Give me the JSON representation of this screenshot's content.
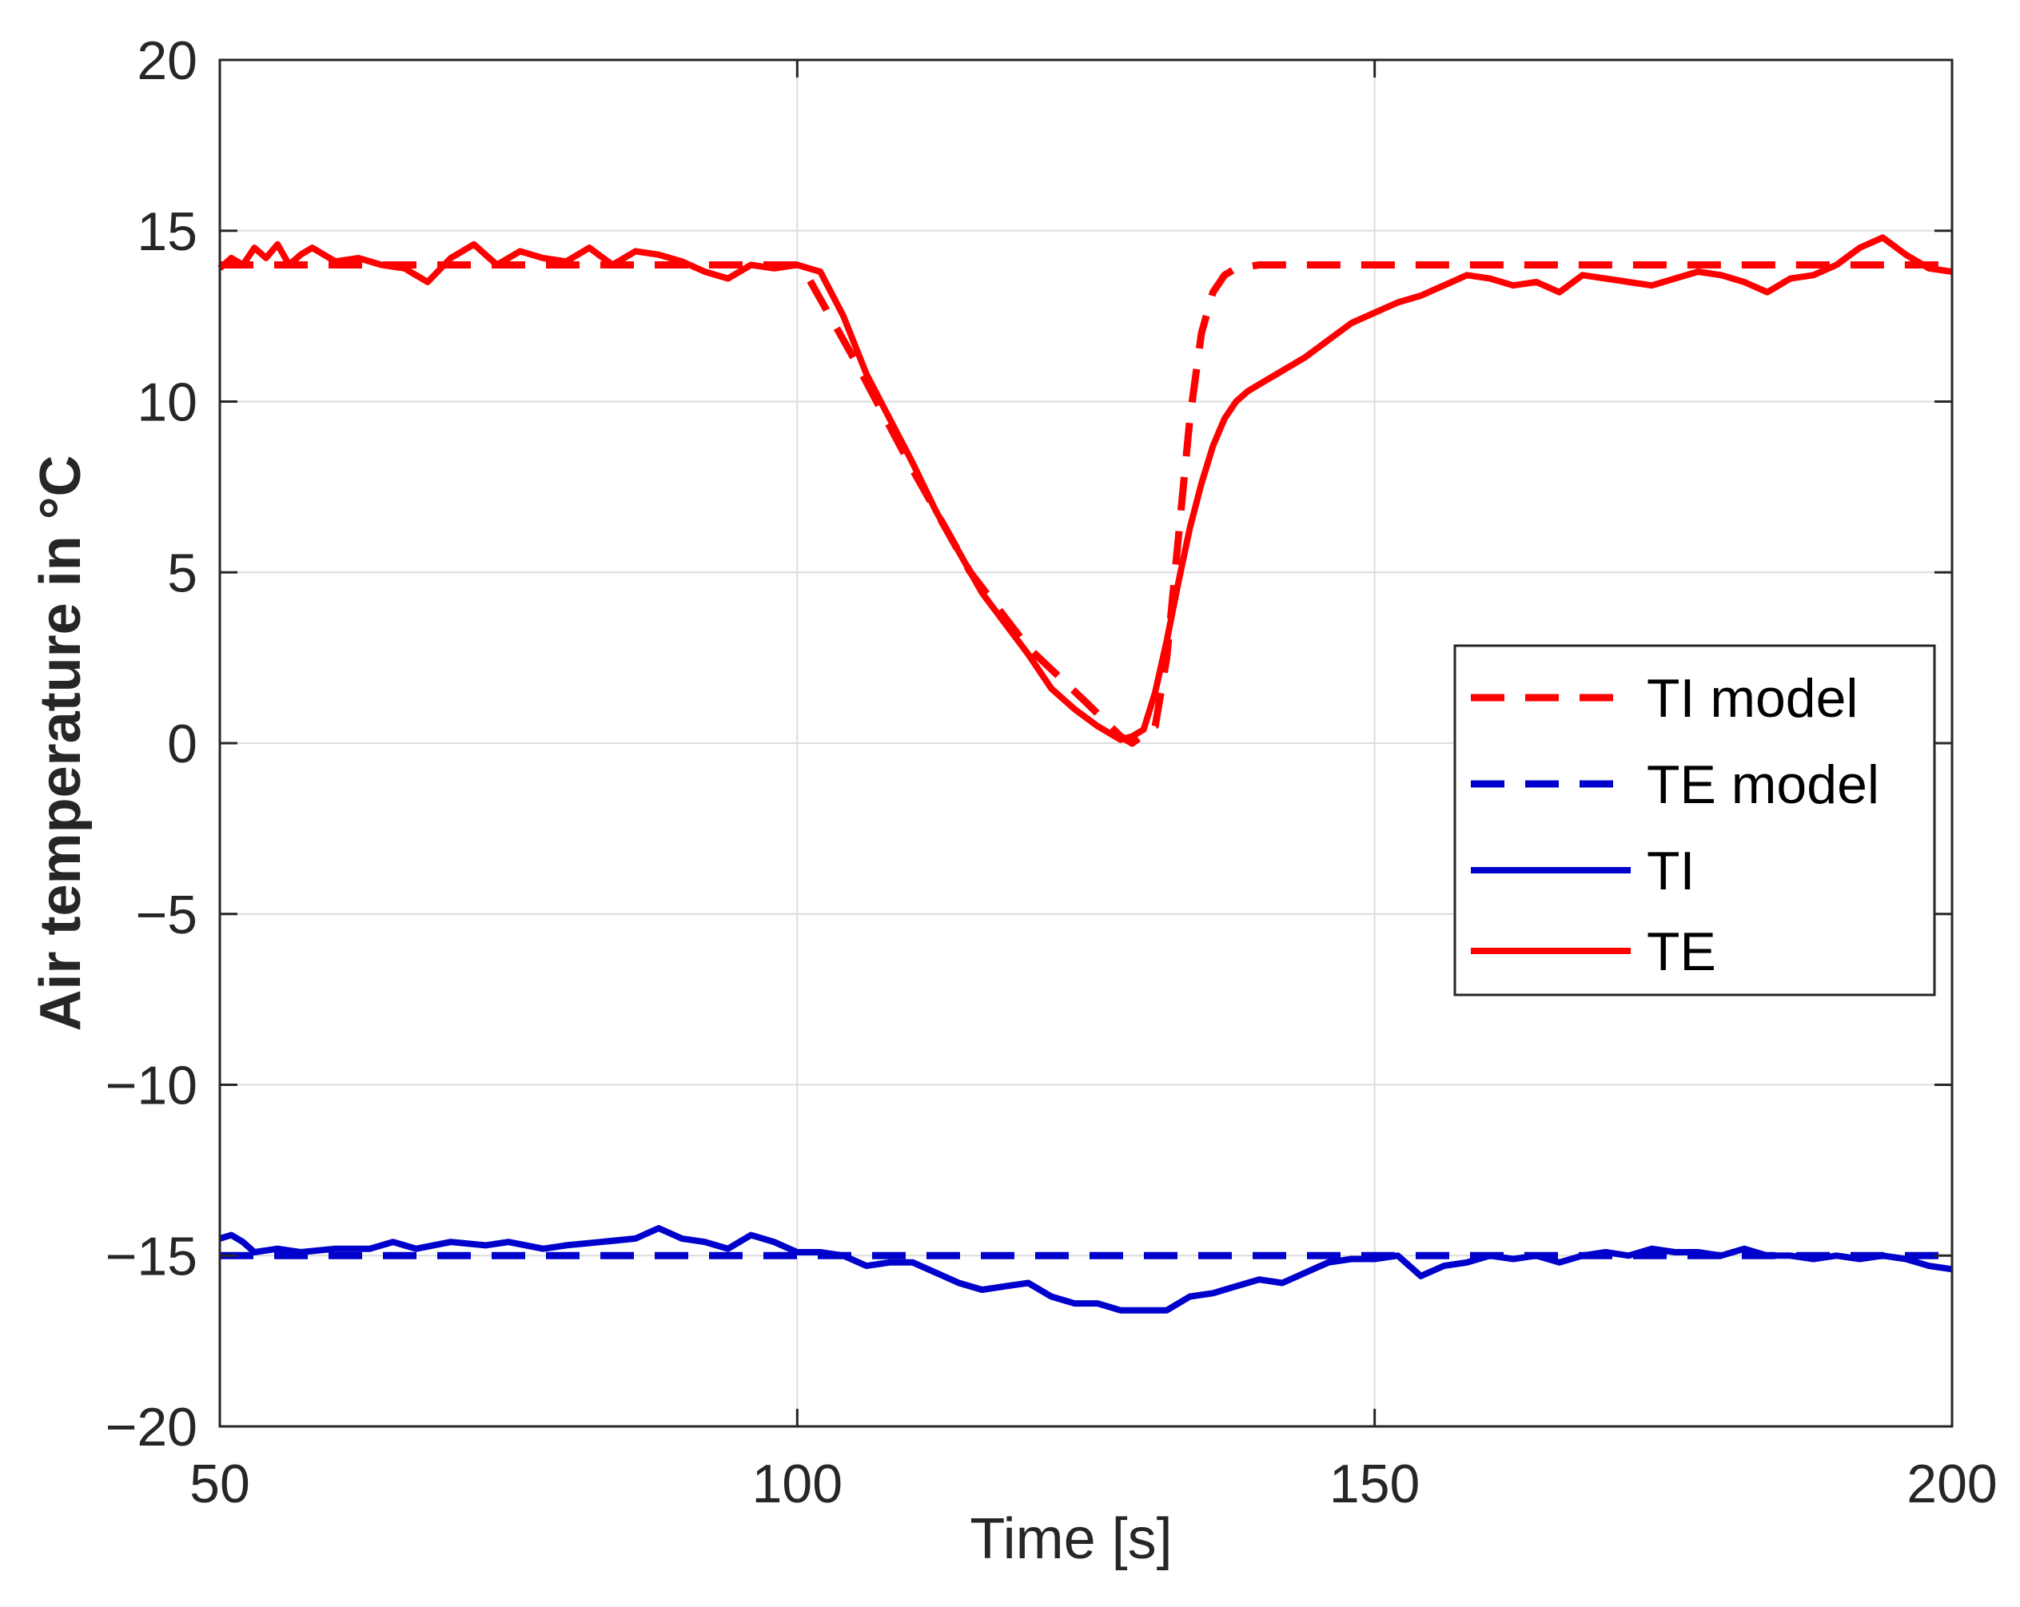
{
  "chart_data": {
    "type": "line",
    "title": "",
    "xlabel": "Time [s]",
    "ylabel": "Air temperature in °C",
    "xlim": [
      50,
      200
    ],
    "ylim": [
      -20,
      20
    ],
    "xticks": [
      50,
      100,
      150,
      200
    ],
    "yticks": [
      -20,
      -15,
      -10,
      -5,
      0,
      5,
      10,
      15,
      20
    ],
    "xtick_labels": [
      "50",
      "100",
      "150",
      "200"
    ],
    "ytick_labels": [
      "−20",
      "−15",
      "−10",
      "−5",
      "0",
      "5",
      "10",
      "15",
      "20"
    ],
    "grid": true,
    "legend_position": "right",
    "series": [
      {
        "name": "TI model",
        "color": "#ff0000",
        "style": "dashed",
        "x": [
          50,
          100,
          101,
          105,
          110,
          115,
          120,
          125,
          128,
          129,
          131,
          132,
          133,
          134,
          135,
          136,
          137,
          138,
          140,
          145,
          150,
          155,
          160,
          170,
          180,
          190,
          200
        ],
        "y": [
          14.0,
          14.0,
          13.6,
          11.2,
          8.0,
          5.0,
          2.8,
          1.2,
          0.2,
          0.0,
          0.5,
          2.5,
          6.0,
          9.5,
          12.0,
          13.2,
          13.7,
          13.9,
          14.0,
          14.0,
          14.0,
          14.0,
          14.0,
          14.0,
          14.0,
          14.0,
          14.0
        ]
      },
      {
        "name": "TE model",
        "color": "#0000cc",
        "style": "dashed",
        "x": [
          50,
          75,
          100,
          125,
          150,
          175,
          200
        ],
        "y": [
          -15.0,
          -15.0,
          -15.0,
          -15.0,
          -15.0,
          -15.0,
          -15.0
        ]
      },
      {
        "name": "TI",
        "color": "#0000cc",
        "style": "solid",
        "x": [
          50,
          51,
          52,
          53,
          55,
          57,
          60,
          63,
          65,
          67,
          70,
          73,
          75,
          78,
          80,
          83,
          86,
          88,
          90,
          92,
          94,
          96,
          98,
          100,
          102,
          104,
          106,
          108,
          110,
          112,
          114,
          116,
          118,
          120,
          122,
          124,
          126,
          128,
          130,
          132,
          134,
          136,
          138,
          140,
          142,
          144,
          146,
          148,
          150,
          152,
          154,
          156,
          158,
          160,
          162,
          164,
          166,
          168,
          170,
          172,
          174,
          176,
          178,
          180,
          182,
          184,
          186,
          188,
          190,
          192,
          194,
          196,
          198,
          200
        ],
        "y": [
          -14.5,
          -14.4,
          -14.6,
          -14.9,
          -14.8,
          -14.9,
          -14.8,
          -14.8,
          -14.6,
          -14.8,
          -14.6,
          -14.7,
          -14.6,
          -14.8,
          -14.7,
          -14.6,
          -14.5,
          -14.2,
          -14.5,
          -14.6,
          -14.8,
          -14.4,
          -14.6,
          -14.9,
          -14.9,
          -15.0,
          -15.3,
          -15.2,
          -15.2,
          -15.5,
          -15.8,
          -16.0,
          -15.9,
          -15.8,
          -16.2,
          -16.4,
          -16.4,
          -16.6,
          -16.6,
          -16.6,
          -16.2,
          -16.1,
          -15.9,
          -15.7,
          -15.8,
          -15.5,
          -15.2,
          -15.1,
          -15.1,
          -15.0,
          -15.6,
          -15.3,
          -15.2,
          -15.0,
          -15.1,
          -15.0,
          -15.2,
          -15.0,
          -14.9,
          -15.0,
          -14.8,
          -14.9,
          -14.9,
          -15.0,
          -14.8,
          -15.0,
          -15.0,
          -15.1,
          -15.0,
          -15.1,
          -15.0,
          -15.1,
          -15.3,
          -15.4
        ]
      },
      {
        "name": "TE",
        "color": "#ff0000",
        "style": "solid",
        "x": [
          50,
          51,
          52,
          53,
          54,
          55,
          56,
          57,
          58,
          60,
          62,
          64,
          66,
          68,
          70,
          72,
          74,
          76,
          78,
          80,
          82,
          84,
          86,
          88,
          90,
          92,
          94,
          96,
          98,
          100,
          102,
          104,
          106,
          108,
          110,
          112,
          114,
          116,
          118,
          120,
          122,
          124,
          126,
          128,
          129,
          130,
          131,
          132,
          133,
          134,
          135,
          136,
          137,
          138,
          139,
          140,
          142,
          144,
          146,
          148,
          150,
          152,
          154,
          156,
          158,
          160,
          162,
          164,
          166,
          168,
          170,
          172,
          174,
          176,
          178,
          180,
          182,
          184,
          186,
          188,
          190,
          192,
          194,
          196,
          198,
          200
        ],
        "y": [
          13.9,
          14.2,
          14.0,
          14.5,
          14.2,
          14.6,
          14.0,
          14.3,
          14.5,
          14.1,
          14.2,
          14.0,
          13.9,
          13.5,
          14.2,
          14.6,
          14.0,
          14.4,
          14.2,
          14.1,
          14.5,
          14.0,
          14.4,
          14.3,
          14.1,
          13.8,
          13.6,
          14.0,
          13.9,
          14.0,
          13.8,
          12.5,
          10.8,
          9.5,
          8.2,
          6.8,
          5.6,
          4.4,
          3.5,
          2.6,
          1.6,
          1.0,
          0.5,
          0.1,
          0.2,
          0.4,
          1.5,
          3.0,
          4.7,
          6.3,
          7.6,
          8.7,
          9.5,
          10.0,
          10.3,
          10.5,
          10.9,
          11.3,
          11.8,
          12.3,
          12.6,
          12.9,
          13.1,
          13.4,
          13.7,
          13.6,
          13.4,
          13.5,
          13.2,
          13.7,
          13.6,
          13.5,
          13.4,
          13.6,
          13.8,
          13.7,
          13.5,
          13.2,
          13.6,
          13.7,
          14.0,
          14.5,
          14.8,
          14.3,
          13.9,
          13.8
        ]
      }
    ]
  }
}
